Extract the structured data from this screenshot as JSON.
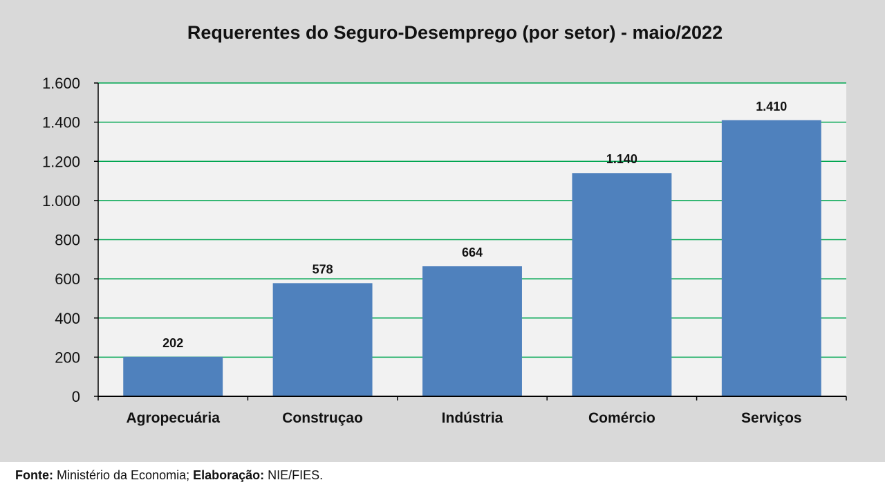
{
  "chart_data": {
    "type": "bar",
    "title": "Requerentes do Seguro-Desemprego (por setor) - maio/2022",
    "categories": [
      "Agropecuária",
      "Construçao",
      "Indústria",
      "Comércio",
      "Serviços"
    ],
    "values": [
      202,
      578,
      664,
      1140,
      1410
    ],
    "value_labels": [
      "202",
      "578",
      "664",
      "1.140",
      "1.410"
    ],
    "ylim": [
      0,
      1600
    ],
    "yticks": [
      0,
      200,
      400,
      600,
      800,
      1000,
      1200,
      1400,
      1600
    ],
    "ytick_labels": [
      "0",
      "200",
      "400",
      "600",
      "800",
      "1.000",
      "1.200",
      "1.400",
      "1.600"
    ],
    "xlabel": "",
    "ylabel": "",
    "grid": true,
    "bar_color": "#4f81bd",
    "grid_color": "#00a651",
    "plot_background": "#f2f2f2"
  },
  "source": {
    "fonte_label": "Fonte:",
    "fonte_text": "Ministério da Economia;",
    "elaboracao_label": "Elaboração:",
    "elaboracao_text": "NIE/FIES."
  }
}
